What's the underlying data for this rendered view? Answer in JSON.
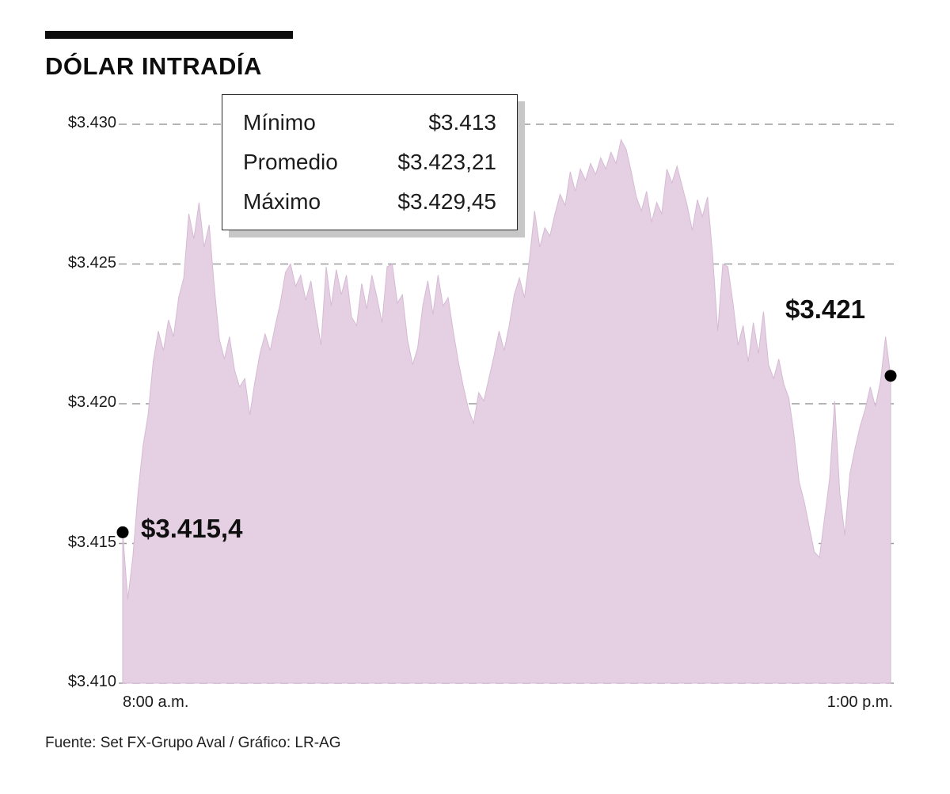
{
  "page": {
    "title": "DÓLAR INTRADÍA",
    "source": "Fuente: Set FX-Grupo Aval / Gráfico: LR-AG"
  },
  "legend": {
    "rows": [
      {
        "label": "Mínimo",
        "value": "$3.413"
      },
      {
        "label": "Promedio",
        "value": "$3.423,21"
      },
      {
        "label": "Máximo",
        "value": "$3.429,45"
      }
    ]
  },
  "annotations": {
    "start_value_label": "$3.415,4",
    "end_value_label": "$3.421"
  },
  "chart_data": {
    "type": "area",
    "title": "DÓLAR INTRADÍA",
    "xlabel": "",
    "ylabel": "",
    "x_start_label": "8:00 a.m.",
    "x_end_label": "1:00 p.m.",
    "ylim": [
      3410,
      3430
    ],
    "grid": "dashed-horizontal",
    "legend_position": "top-left-box",
    "fill_color": "#e4d0e2",
    "edge_color": "#d6bad4",
    "dot_color": "#000000",
    "grid_color": "#9b9b9b",
    "stat_min": 3413,
    "stat_avg": 3423.21,
    "stat_max": 3429.45,
    "first_value": 3415.4,
    "last_value": 3421.0,
    "yticks": [
      {
        "value": 3430,
        "label": "$3.430"
      },
      {
        "value": 3425,
        "label": "$3.425"
      },
      {
        "value": 3420,
        "label": "$3.420"
      },
      {
        "value": 3415,
        "label": "$3.415"
      },
      {
        "value": 3410,
        "label": "$3.410"
      }
    ],
    "values": [
      3415.4,
      3413.0,
      3414.5,
      3416.8,
      3418.5,
      3419.6,
      3421.5,
      3422.6,
      3421.9,
      3423.0,
      3422.4,
      3423.8,
      3424.5,
      3426.8,
      3425.9,
      3427.2,
      3425.6,
      3426.4,
      3424.2,
      3422.3,
      3421.6,
      3422.4,
      3421.2,
      3420.6,
      3420.9,
      3419.6,
      3420.8,
      3421.8,
      3422.5,
      3421.9,
      3422.8,
      3423.6,
      3424.7,
      3425.0,
      3424.2,
      3424.6,
      3423.7,
      3424.4,
      3423.2,
      3422.1,
      3424.9,
      3423.5,
      3424.8,
      3423.9,
      3424.6,
      3423.1,
      3422.8,
      3424.3,
      3423.4,
      3424.6,
      3423.8,
      3422.9,
      3424.9,
      3425.0,
      3423.6,
      3423.9,
      3422.3,
      3421.4,
      3422.0,
      3423.5,
      3424.4,
      3423.2,
      3424.6,
      3423.5,
      3423.8,
      3422.6,
      3421.5,
      3420.6,
      3419.8,
      3419.3,
      3420.4,
      3420.1,
      3420.9,
      3421.7,
      3422.6,
      3421.9,
      3422.8,
      3423.9,
      3424.5,
      3423.8,
      3425.2,
      3426.9,
      3425.6,
      3426.3,
      3426.0,
      3426.8,
      3427.5,
      3427.1,
      3428.3,
      3427.6,
      3428.4,
      3428.0,
      3428.6,
      3428.2,
      3428.8,
      3428.4,
      3429.0,
      3428.6,
      3429.45,
      3429.1,
      3428.3,
      3427.4,
      3426.9,
      3427.6,
      3426.5,
      3427.2,
      3426.8,
      3428.4,
      3427.9,
      3428.5,
      3427.8,
      3427.1,
      3426.2,
      3427.3,
      3426.7,
      3427.4,
      3425.3,
      3422.6,
      3425.0,
      3424.9,
      3423.6,
      3422.1,
      3422.8,
      3421.5,
      3422.9,
      3421.8,
      3423.3,
      3421.4,
      3420.9,
      3421.6,
      3420.7,
      3420.2,
      3418.9,
      3417.2,
      3416.5,
      3415.6,
      3414.7,
      3414.5,
      3415.9,
      3417.3,
      3420.1,
      3416.8,
      3415.3,
      3417.5,
      3418.4,
      3419.2,
      3419.8,
      3420.6,
      3419.9,
      3420.8,
      3422.4,
      3421.0
    ]
  }
}
